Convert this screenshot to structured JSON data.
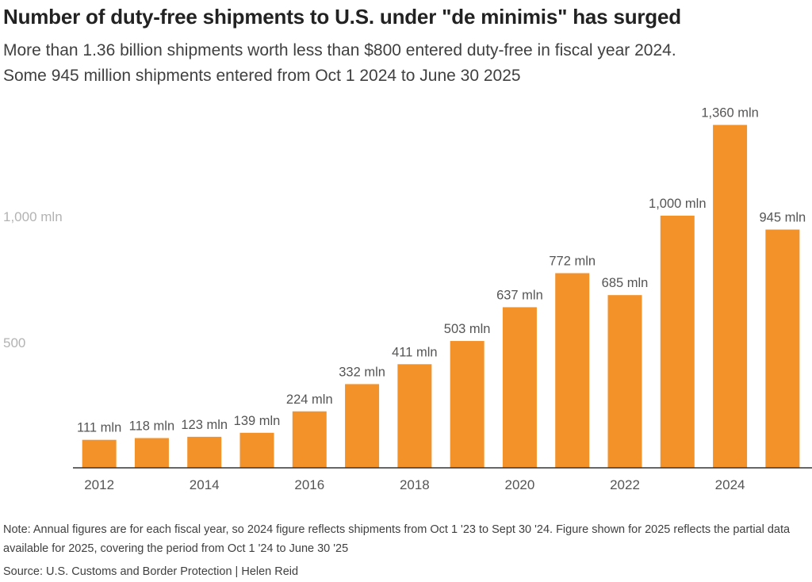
{
  "header": {
    "title": "Number of duty-free shipments to U.S. under \"de minimis\" has surged",
    "subtitle_line1": "More than 1.36 billion shipments worth less than $800 entered duty-free in fiscal year 2024.",
    "subtitle_line2": "Some 945 million shipments entered from Oct 1 2024 to June 30 2025"
  },
  "footer": {
    "note": "Note: Annual figures are for each fiscal year, so 2024 figure reflects shipments from Oct 1 '23 to Sept 30 '24. Figure shown for 2025 reflects the partial data available for 2025, covering the period from Oct 1 '24 to June 30 '25",
    "source": "Source: U.S. Customs and Border Protection | Helen Reid"
  },
  "chart_data": {
    "type": "bar",
    "categories": [
      "2012",
      "2013",
      "2014",
      "2015",
      "2016",
      "2017",
      "2018",
      "2019",
      "2020",
      "2021",
      "2022",
      "2023",
      "2024",
      "2025"
    ],
    "values": [
      111,
      118,
      123,
      139,
      224,
      332,
      411,
      503,
      637,
      772,
      685,
      1000,
      1360,
      945
    ],
    "data_labels": [
      "111 mln",
      "118 mln",
      "123 mln",
      "139 mln",
      "224 mln",
      "332 mln",
      "411 mln",
      "503 mln",
      "637 mln",
      "772 mln",
      "685 mln",
      "1,000 mln",
      "1,360 mln",
      "945 mln"
    ],
    "x_tick_labels": [
      "2012",
      "",
      "2014",
      "",
      "2016",
      "",
      "2018",
      "",
      "2020",
      "",
      "2022",
      "",
      "2024",
      ""
    ],
    "y_ticks": [
      500,
      1000
    ],
    "y_tick_labels": [
      "500",
      "1,000 mln"
    ],
    "ylim": [
      0,
      1400
    ],
    "xlabel": "",
    "ylabel": "",
    "bar_color": "#f4922a",
    "axis_color": "#333333",
    "tick_label_color": "#b3b3b3",
    "grid": false
  }
}
